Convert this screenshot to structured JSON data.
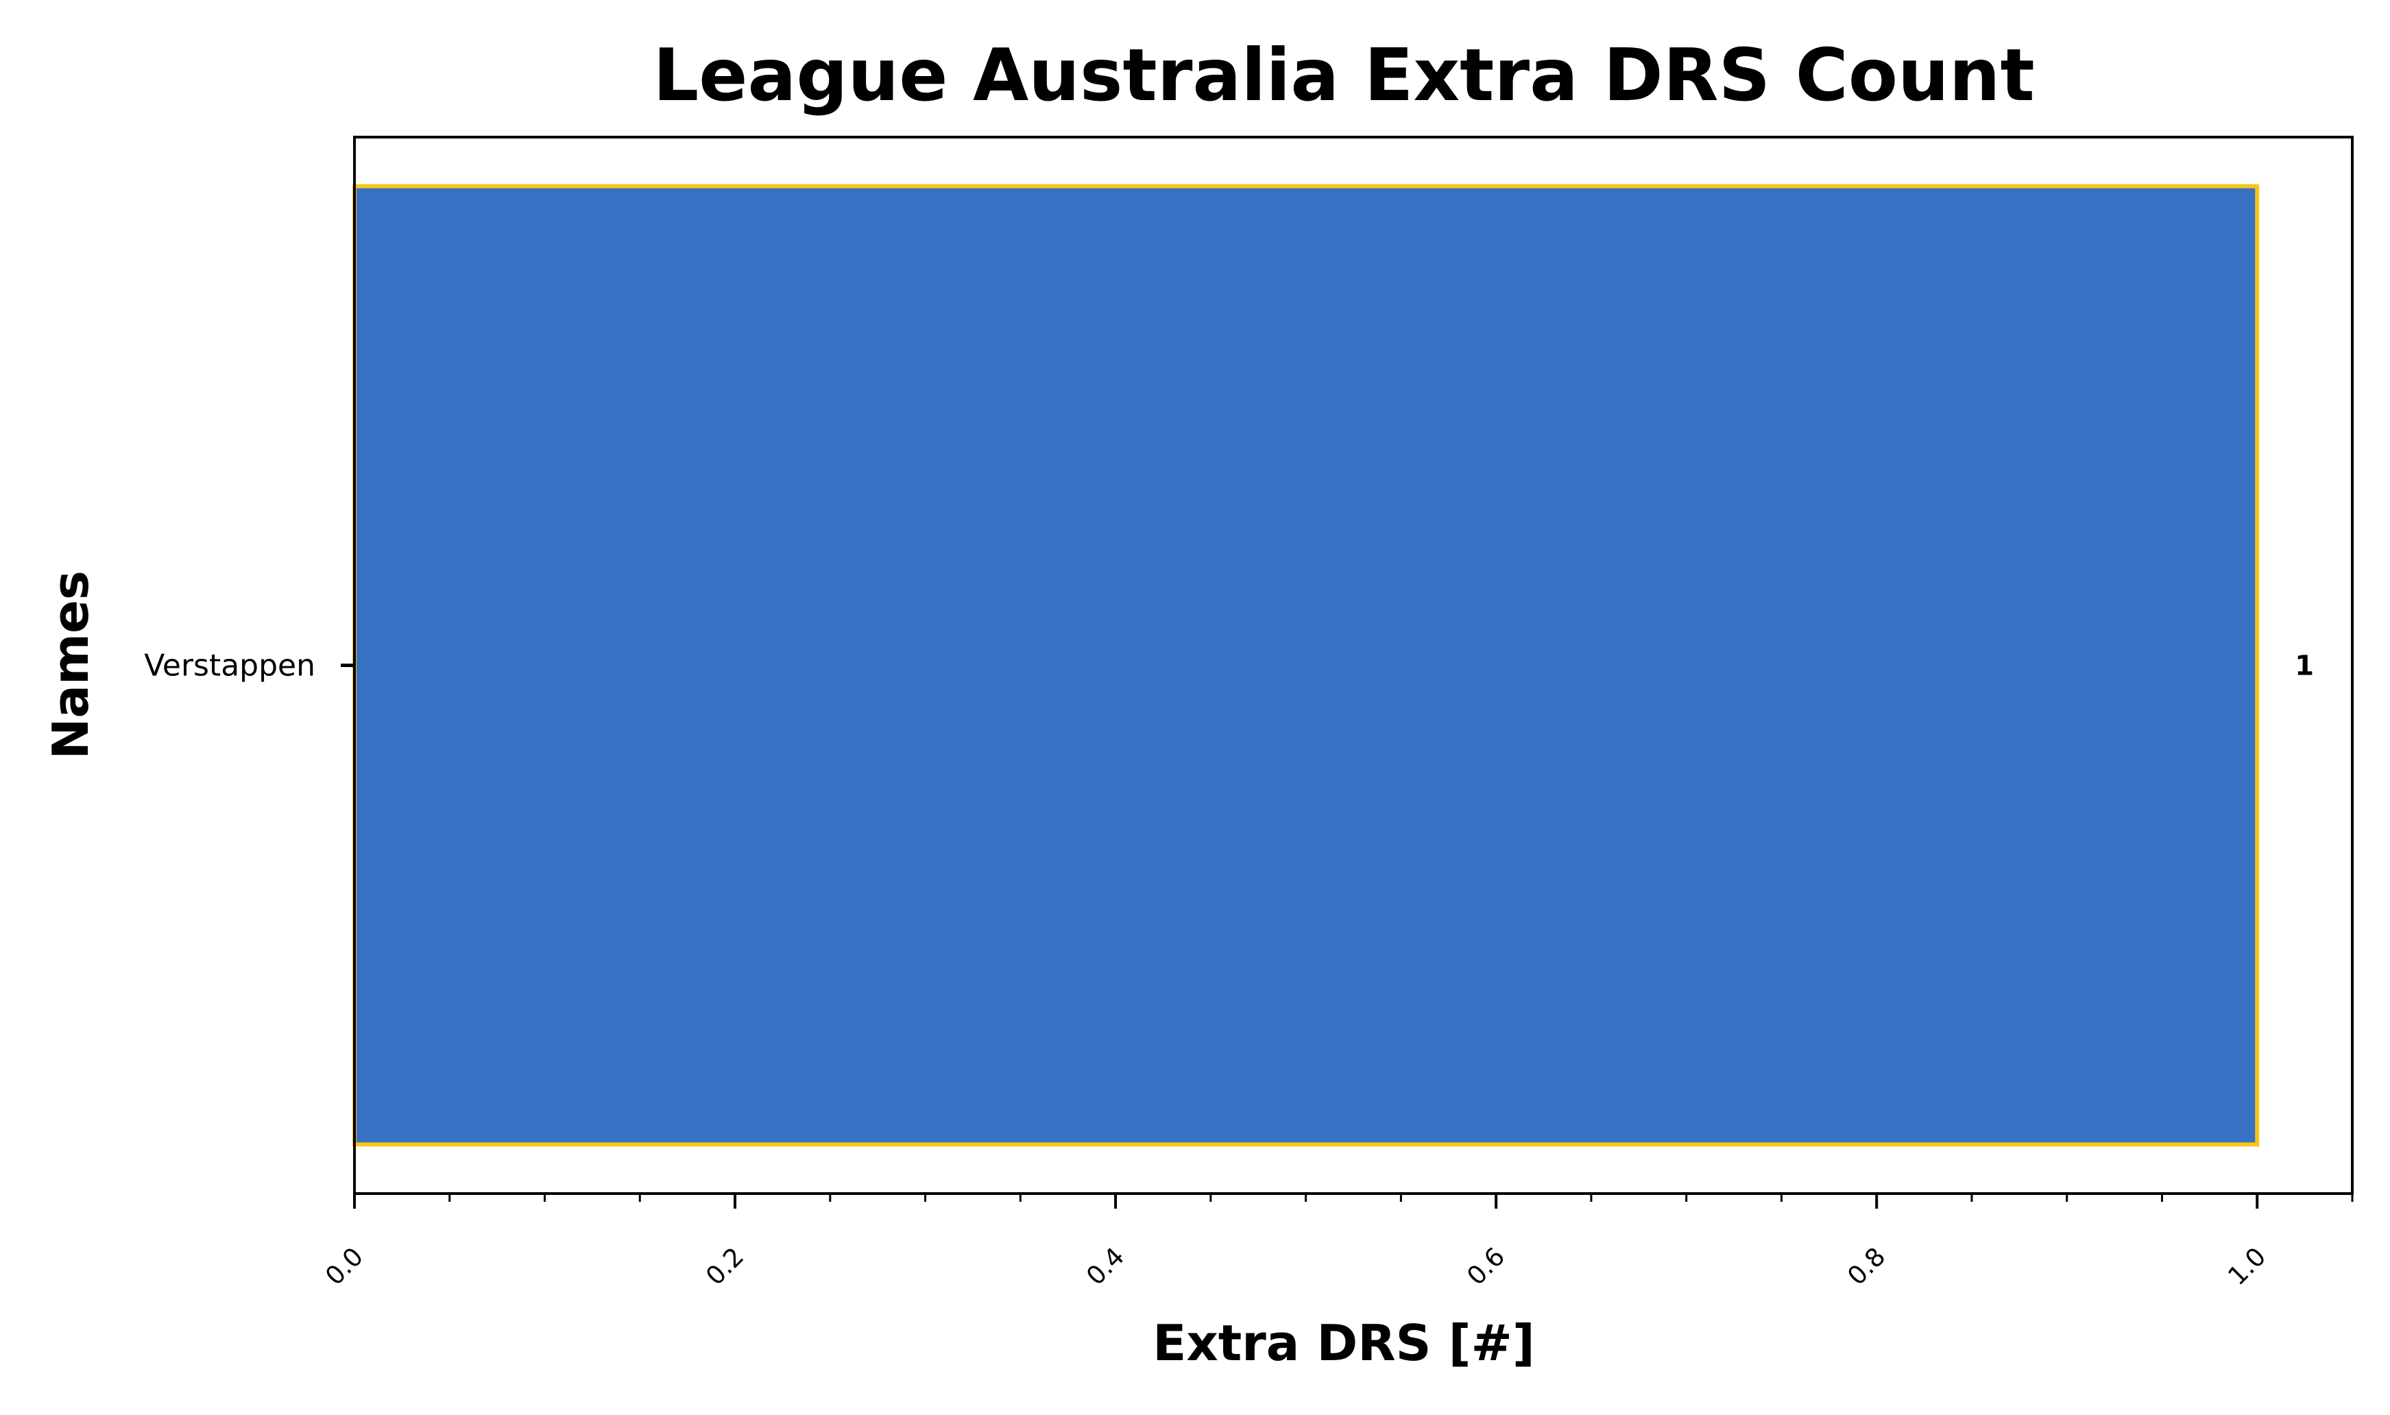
{
  "chart_data": {
    "type": "bar",
    "orientation": "horizontal",
    "title": "League Australia Extra DRS Count",
    "xlabel": "Extra DRS [#]",
    "ylabel": "Names",
    "categories": [
      "Verstappen"
    ],
    "values": [
      1
    ],
    "data_labels": [
      "1"
    ],
    "xlim": [
      0,
      1.05
    ],
    "x_ticks": [
      0.0,
      0.2,
      0.4,
      0.6,
      0.8,
      1.0
    ],
    "x_tick_labels": [
      "0.0",
      "0.2",
      "0.4",
      "0.6",
      "0.8",
      "1.0"
    ],
    "x_minor_tick_step": 0.05,
    "x_tick_label_rotation": "45 degrees",
    "grid": false,
    "legend": "none",
    "colors": {
      "bar_fill": "#3771c4",
      "bar_edge": "#f5c518",
      "axes": "#000000",
      "background": "#ffffff"
    }
  }
}
